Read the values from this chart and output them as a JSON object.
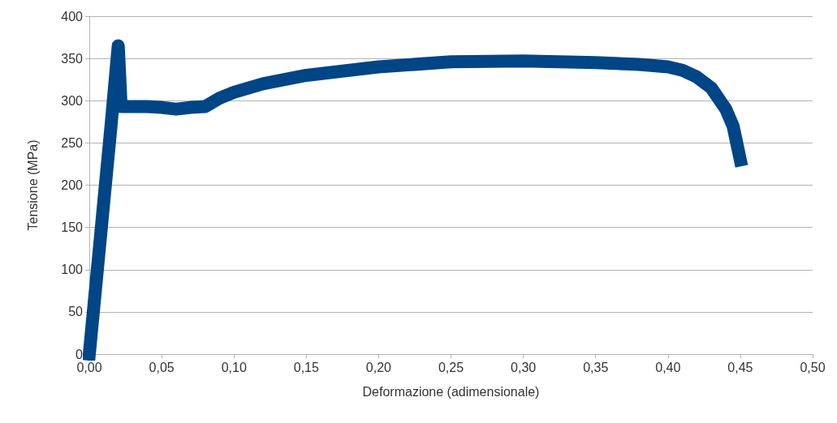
{
  "chart_data": {
    "type": "line",
    "xlabel": "Deformazione (adimensionale)",
    "ylabel": "Tensione (MPa)",
    "xlim": [
      0,
      0.5
    ],
    "ylim": [
      0,
      400
    ],
    "xticks": [
      {
        "value": 0,
        "label": "0,00"
      },
      {
        "value": 0.05,
        "label": "0,05"
      },
      {
        "value": 0.1,
        "label": "0,10"
      },
      {
        "value": 0.15,
        "label": "0,15"
      },
      {
        "value": 0.2,
        "label": "0,20"
      },
      {
        "value": 0.25,
        "label": "0,25"
      },
      {
        "value": 0.3,
        "label": "0,30"
      },
      {
        "value": 0.35,
        "label": "0,35"
      },
      {
        "value": 0.4,
        "label": "0,40"
      },
      {
        "value": 0.45,
        "label": "0,45"
      },
      {
        "value": 0.5,
        "label": "0,50"
      }
    ],
    "yticks": [
      0,
      50,
      100,
      150,
      200,
      250,
      300,
      350,
      400
    ],
    "grid": "y",
    "line_style": "solid",
    "series": [
      {
        "color": "#004586",
        "x": [
          0,
          0.005,
          0.01,
          0.015,
          0.02,
          0.021,
          0.022,
          0.025,
          0.03,
          0.04,
          0.05,
          0.06,
          0.07,
          0.08,
          0.085,
          0.09,
          0.1,
          0.12,
          0.15,
          0.2,
          0.25,
          0.3,
          0.35,
          0.38,
          0.4,
          0.41,
          0.42,
          0.43,
          0.44,
          0.445,
          0.45
        ],
        "values": [
          0,
          90,
          180,
          270,
          365,
          330,
          293,
          293,
          293,
          293,
          292,
          290,
          292,
          293,
          298,
          303,
          310,
          320,
          330,
          340,
          346,
          347,
          345,
          343,
          340,
          336,
          328,
          315,
          290,
          270,
          230
        ]
      }
    ]
  }
}
